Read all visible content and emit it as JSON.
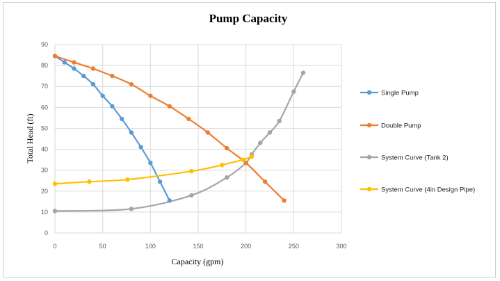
{
  "chart_data": {
    "type": "scatter",
    "title": "Pump Capacity",
    "xlabel": "Capacity (gpm)",
    "ylabel": "Total Head (ft)",
    "xlim": [
      0,
      300
    ],
    "ylim": [
      0,
      90
    ],
    "xticks": [
      0,
      50,
      100,
      150,
      200,
      250,
      300
    ],
    "yticks": [
      0,
      10,
      20,
      30,
      40,
      50,
      60,
      70,
      80,
      90
    ],
    "grid": true,
    "legend_position": "right",
    "series": [
      {
        "name": "Single Pump",
        "color": "#5b9bd5",
        "points": [
          [
            0,
            84.5
          ],
          [
            10,
            81.5
          ],
          [
            20,
            78.5
          ],
          [
            30,
            75
          ],
          [
            40,
            71
          ],
          [
            50,
            65.5
          ],
          [
            60,
            60.5
          ],
          [
            70,
            54.5
          ],
          [
            80,
            48
          ],
          [
            90,
            41
          ],
          [
            100,
            33.5
          ],
          [
            110,
            24.5
          ],
          [
            120,
            15.5
          ]
        ]
      },
      {
        "name": "Double Pump",
        "color": "#ed7d31",
        "points": [
          [
            0,
            84.5
          ],
          [
            20,
            81.5
          ],
          [
            40,
            78.5
          ],
          [
            60,
            75
          ],
          [
            80,
            71
          ],
          [
            100,
            65.5
          ],
          [
            120,
            60.5
          ],
          [
            140,
            54.5
          ],
          [
            160,
            48
          ],
          [
            180,
            40.5
          ],
          [
            200,
            33.5
          ],
          [
            220,
            24.5
          ],
          [
            240,
            15.5
          ]
        ]
      },
      {
        "name": "System Curve (Tank 2)",
        "color": "#a5a5a5",
        "points": [
          [
            0,
            10.5
          ],
          [
            80,
            11.5
          ],
          [
            143,
            18
          ],
          [
            180,
            26.5
          ],
          [
            200,
            33.5
          ],
          [
            206,
            37.5
          ],
          [
            215,
            43
          ],
          [
            225,
            48
          ],
          [
            235,
            53.5
          ],
          [
            250,
            67.5
          ],
          [
            260,
            76.5
          ]
        ]
      },
      {
        "name": "System Curve (4in Design Pipe)",
        "color": "#ffc000",
        "points": [
          [
            0,
            23.5
          ],
          [
            36,
            24.5
          ],
          [
            76,
            25.5
          ],
          [
            143,
            29.5
          ],
          [
            175,
            32.5
          ],
          [
            197,
            35
          ],
          [
            206,
            36.5
          ]
        ]
      }
    ]
  }
}
